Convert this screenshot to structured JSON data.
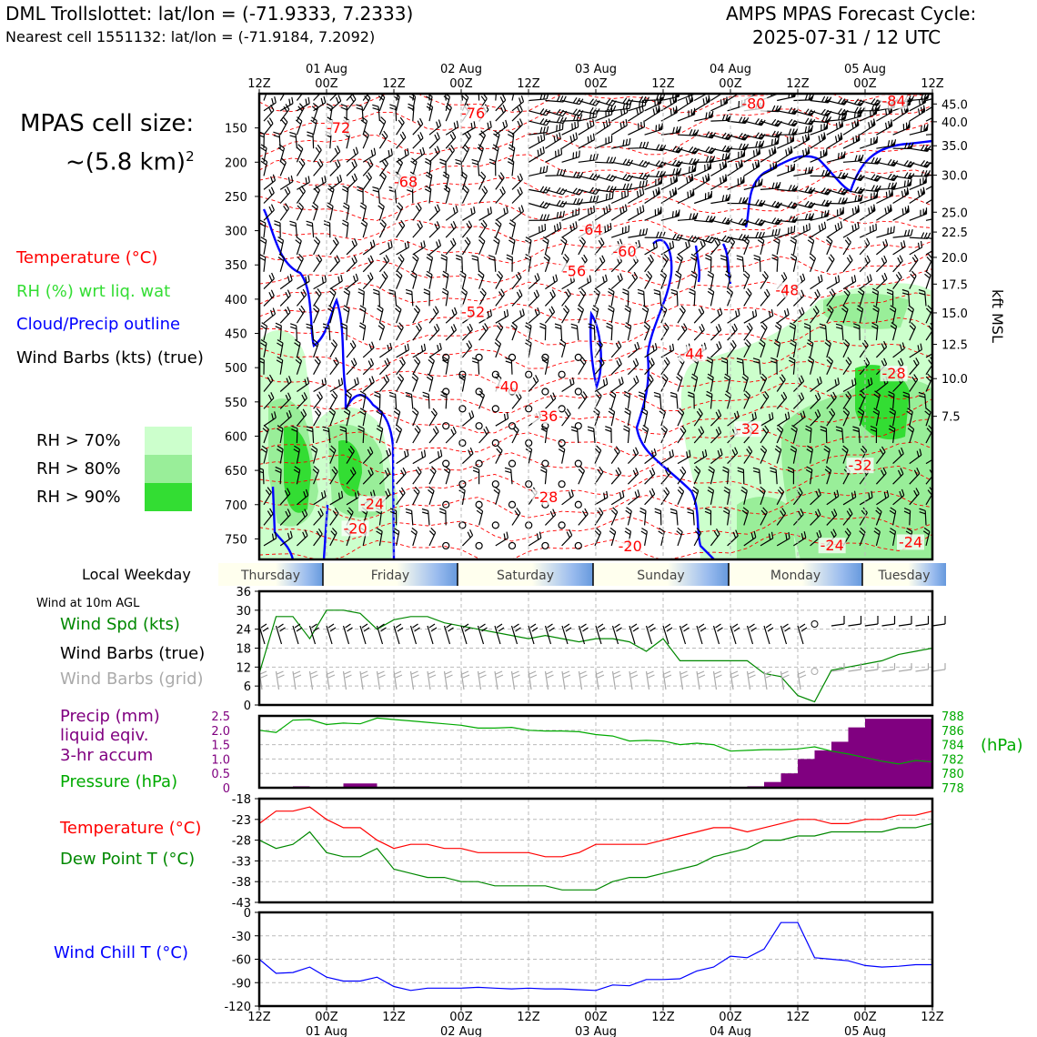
{
  "header": {
    "station": "DML Trollslottet: lat/lon = (-71.9333, 7.2333)",
    "nearest": "Nearest cell 1551132: lat/lon = (-71.9184, 7.2092)",
    "cycle_line1": "AMPS MPAS Forecast Cycle:",
    "cycle_line2": "2025-07-31 / 12 UTC"
  },
  "cell": {
    "line1": "MPAS cell size:",
    "line2": "~(5.8 km)",
    "sup": "2"
  },
  "legend": {
    "temp": "Temperature (°C)",
    "temp_color": "#ff0000",
    "rh": "RH (%) wrt liq. wat",
    "rh_color": "#33dd33",
    "cloud": "Cloud/Precip outline",
    "cloud_color": "#0000ff",
    "wind": "Wind Barbs (kts) (true)",
    "rh70": "RH > 70%",
    "rh80": "RH > 80%",
    "rh90": "RH > 90%",
    "rh70_color": "#ccffcc",
    "rh80_color": "#99ee99",
    "rh90_color": "#33dd33"
  },
  "time_axis": {
    "top_ticks": [
      "12Z",
      "00Z",
      "12Z",
      "00Z",
      "12Z",
      "00Z",
      "12Z",
      "00Z",
      "12Z",
      "00Z",
      "12Z"
    ],
    "dates": [
      "01 Aug",
      "02 Aug",
      "03 Aug",
      "04 Aug",
      "05 Aug"
    ]
  },
  "weekday": {
    "label": "Local Weekday",
    "days": [
      "Thursday",
      "Friday",
      "Saturday",
      "Sunday",
      "Monday",
      "Tuesday"
    ]
  },
  "kft_label": "kft MSL",
  "panel_labels": {
    "wind10": "Wind at 10m AGL",
    "wspd": "Wind Spd (kts)",
    "wbarb_true": "Wind Barbs (true)",
    "wbarb_grid": "Wind Barbs (grid)",
    "precip1": "Precip (mm)",
    "precip2": "liquid eqiv.",
    "precip3": "3-hr accum",
    "pressure": "Pressure (hPa)",
    "hpa_unit": "(hPa)",
    "temp": "Temperature (°C)",
    "dew": "Dew Point T (°C)",
    "chill": "Wind Chill T (°C)"
  },
  "chart_data": [
    {
      "type": "heatmap",
      "name": "time-height cross section",
      "x_hours": [
        0,
        120
      ],
      "pressure_ticks": [
        150,
        200,
        250,
        300,
        350,
        400,
        450,
        500,
        550,
        600,
        650,
        700,
        750
      ],
      "kft_ticks": [
        "45.0",
        "40.0",
        "35.0",
        "30.0",
        "25.0",
        "22.5",
        "20.0",
        "17.5",
        "15.0",
        "12.5",
        "10.0",
        "7.5"
      ],
      "kft_tick_pressures": [
        115,
        141,
        176,
        219,
        273,
        302,
        339,
        378,
        420,
        466,
        516,
        571
      ],
      "ylim_hpa": [
        100,
        780
      ],
      "temp_labels": [
        {
          "t": "-80",
          "h": 86,
          "p": 122
        },
        {
          "t": "-84",
          "h": 111,
          "p": 118
        },
        {
          "t": "-76",
          "h": 36,
          "p": 136
        },
        {
          "t": "-72",
          "h": 12,
          "p": 157
        },
        {
          "t": "-68",
          "h": 24,
          "p": 236
        },
        {
          "t": "-64",
          "h": 57,
          "p": 306
        },
        {
          "t": "-60",
          "h": 63,
          "p": 338
        },
        {
          "t": "-56",
          "h": 54,
          "p": 366
        },
        {
          "t": "-52",
          "h": 36,
          "p": 426
        },
        {
          "t": "-48",
          "h": 92,
          "p": 394
        },
        {
          "t": "-44",
          "h": 75,
          "p": 487
        },
        {
          "t": "-40",
          "h": 42,
          "p": 535
        },
        {
          "t": "-36",
          "h": 49,
          "p": 578
        },
        {
          "t": "-32",
          "h": 85,
          "p": 597
        },
        {
          "t": "-32",
          "h": 105,
          "p": 650
        },
        {
          "t": "-28",
          "h": 111,
          "p": 516
        },
        {
          "t": "-28",
          "h": 49,
          "p": 696
        },
        {
          "t": "-24",
          "h": 18,
          "p": 706
        },
        {
          "t": "-24",
          "h": 100,
          "p": 767
        },
        {
          "t": "-24",
          "h": 114,
          "p": 762
        },
        {
          "t": "-20",
          "h": 15,
          "p": 742
        },
        {
          "t": "-20",
          "h": 64,
          "p": 768
        }
      ],
      "rh_levels": [
        70,
        80,
        90
      ]
    },
    {
      "type": "line",
      "name": "10m wind speed",
      "x_hours": [
        0,
        3,
        6,
        9,
        12,
        15,
        18,
        21,
        24,
        27,
        30,
        33,
        36,
        39,
        42,
        45,
        48,
        51,
        54,
        57,
        60,
        63,
        66,
        69,
        72,
        75,
        78,
        81,
        84,
        87,
        90,
        93,
        96,
        99,
        102,
        105,
        108,
        111,
        114,
        117,
        120
      ],
      "series": [
        {
          "name": "Wind Spd (kts)",
          "color": "#008800",
          "values": [
            10,
            28,
            28,
            21,
            30,
            30,
            29,
            24,
            27,
            28,
            28,
            26,
            25,
            24,
            23,
            22,
            21,
            22,
            21,
            20,
            21,
            21,
            20,
            17,
            21,
            14,
            14,
            14,
            14,
            14,
            10,
            9,
            3,
            1,
            11,
            12,
            13,
            14,
            16,
            17,
            18
          ]
        }
      ],
      "ylim": [
        0,
        36
      ],
      "yticks": [
        0,
        6,
        12,
        18,
        24,
        30,
        36
      ]
    },
    {
      "type": "bar",
      "name": "3-hr precip and pressure",
      "x_hours": [
        0,
        3,
        6,
        9,
        12,
        15,
        18,
        21,
        24,
        27,
        30,
        33,
        36,
        39,
        42,
        45,
        48,
        51,
        54,
        57,
        60,
        63,
        66,
        69,
        72,
        75,
        78,
        81,
        84,
        87,
        90,
        93,
        96,
        99,
        102,
        105,
        108,
        111,
        114,
        117,
        120
      ],
      "series": [
        {
          "name": "Precip (mm)",
          "color": "#800080",
          "values": [
            0,
            0,
            0,
            0.05,
            0,
            0,
            0.15,
            0.15,
            0,
            0,
            0,
            0,
            0,
            0,
            0,
            0,
            0,
            0,
            0,
            0,
            0,
            0,
            0,
            0,
            0,
            0,
            0,
            0,
            0,
            0,
            0.05,
            0.2,
            0.5,
            1.0,
            1.3,
            1.6,
            2.1,
            2.4,
            2.4,
            2.4,
            2.4
          ]
        },
        {
          "name": "Pressure (hPa)",
          "color": "#00aa00",
          "values": [
            786.0,
            785.7,
            787.4,
            787.5,
            786.8,
            787.0,
            786.9,
            787.7,
            787.5,
            787.3,
            787.1,
            786.9,
            786.7,
            786.3,
            786.3,
            786.4,
            786.0,
            785.9,
            785.9,
            785.8,
            785.4,
            785.2,
            784.5,
            784.6,
            784.5,
            784.0,
            784.2,
            784.0,
            783.1,
            783.2,
            783.3,
            783.3,
            783.4,
            783.7,
            783.1,
            782.7,
            782.2,
            781.7,
            781.3,
            781.8,
            781.6
          ]
        }
      ],
      "ylim_precip": [
        0,
        2.5
      ],
      "yticks_precip": [
        "0",
        "0.5",
        "1.0",
        "1.5",
        "2.0",
        "2.5"
      ],
      "ylim_pressure": [
        778,
        788
      ],
      "yticks_pressure": [
        "778",
        "780",
        "782",
        "784",
        "786",
        "788"
      ]
    },
    {
      "type": "line",
      "name": "temperature and dew point",
      "x_hours": [
        0,
        3,
        6,
        9,
        12,
        15,
        18,
        21,
        24,
        27,
        30,
        33,
        36,
        39,
        42,
        45,
        48,
        51,
        54,
        57,
        60,
        63,
        66,
        69,
        72,
        75,
        78,
        81,
        84,
        87,
        90,
        93,
        96,
        99,
        102,
        105,
        108,
        111,
        114,
        117,
        120
      ],
      "series": [
        {
          "name": "Temperature (°C)",
          "color": "#ff0000",
          "values": [
            -24,
            -21,
            -21,
            -20,
            -23,
            -25,
            -25,
            -28,
            -30,
            -29,
            -29,
            -30,
            -30,
            -31,
            -31,
            -31,
            -31,
            -32,
            -32,
            -31,
            -29,
            -29,
            -29,
            -29,
            -28,
            -27,
            -26,
            -25,
            -25,
            -26,
            -25,
            -24,
            -23,
            -23,
            -24,
            -24,
            -23,
            -23,
            -22,
            -22,
            -21
          ]
        },
        {
          "name": "Dew Point T (°C)",
          "color": "#008800",
          "values": [
            -28,
            -30,
            -29,
            -26,
            -31,
            -32,
            -32,
            -30,
            -35,
            -36,
            -37,
            -37,
            -38,
            -38,
            -39,
            -39,
            -39,
            -39,
            -40,
            -40,
            -40,
            -38,
            -37,
            -37,
            -36,
            -35,
            -34,
            -32,
            -31,
            -30,
            -28,
            -28,
            -27,
            -27,
            -26,
            -26,
            -26,
            -26,
            -25,
            -25,
            -24
          ]
        }
      ],
      "ylim": [
        -43,
        -18
      ],
      "yticks": [
        -43,
        -38,
        -33,
        -28,
        -23,
        -18
      ]
    },
    {
      "type": "line",
      "name": "wind chill",
      "x_hours": [
        0,
        3,
        6,
        9,
        12,
        15,
        18,
        21,
        24,
        27,
        30,
        33,
        36,
        39,
        42,
        45,
        48,
        51,
        54,
        57,
        60,
        63,
        66,
        69,
        72,
        75,
        78,
        81,
        84,
        87,
        90,
        93,
        96,
        99,
        102,
        105,
        108,
        111,
        114,
        117,
        120
      ],
      "series": [
        {
          "name": "Wind Chill T (°C)",
          "color": "#0000ff",
          "values": [
            -60,
            -78,
            -77,
            -70,
            -83,
            -88,
            -88,
            -83,
            -95,
            -100,
            -97,
            -97,
            -97,
            -96,
            -97,
            -98,
            -97,
            -98,
            -98,
            -99,
            -100,
            -93,
            -94,
            -86,
            -86,
            -85,
            -75,
            -70,
            -56,
            -58,
            -47,
            -13,
            -13,
            -58,
            -60,
            -62,
            -68,
            -70,
            -69,
            -67,
            -67
          ]
        }
      ],
      "ylim": [
        -120,
        0
      ],
      "yticks": [
        -120,
        -90,
        -60,
        -30,
        0
      ]
    }
  ]
}
